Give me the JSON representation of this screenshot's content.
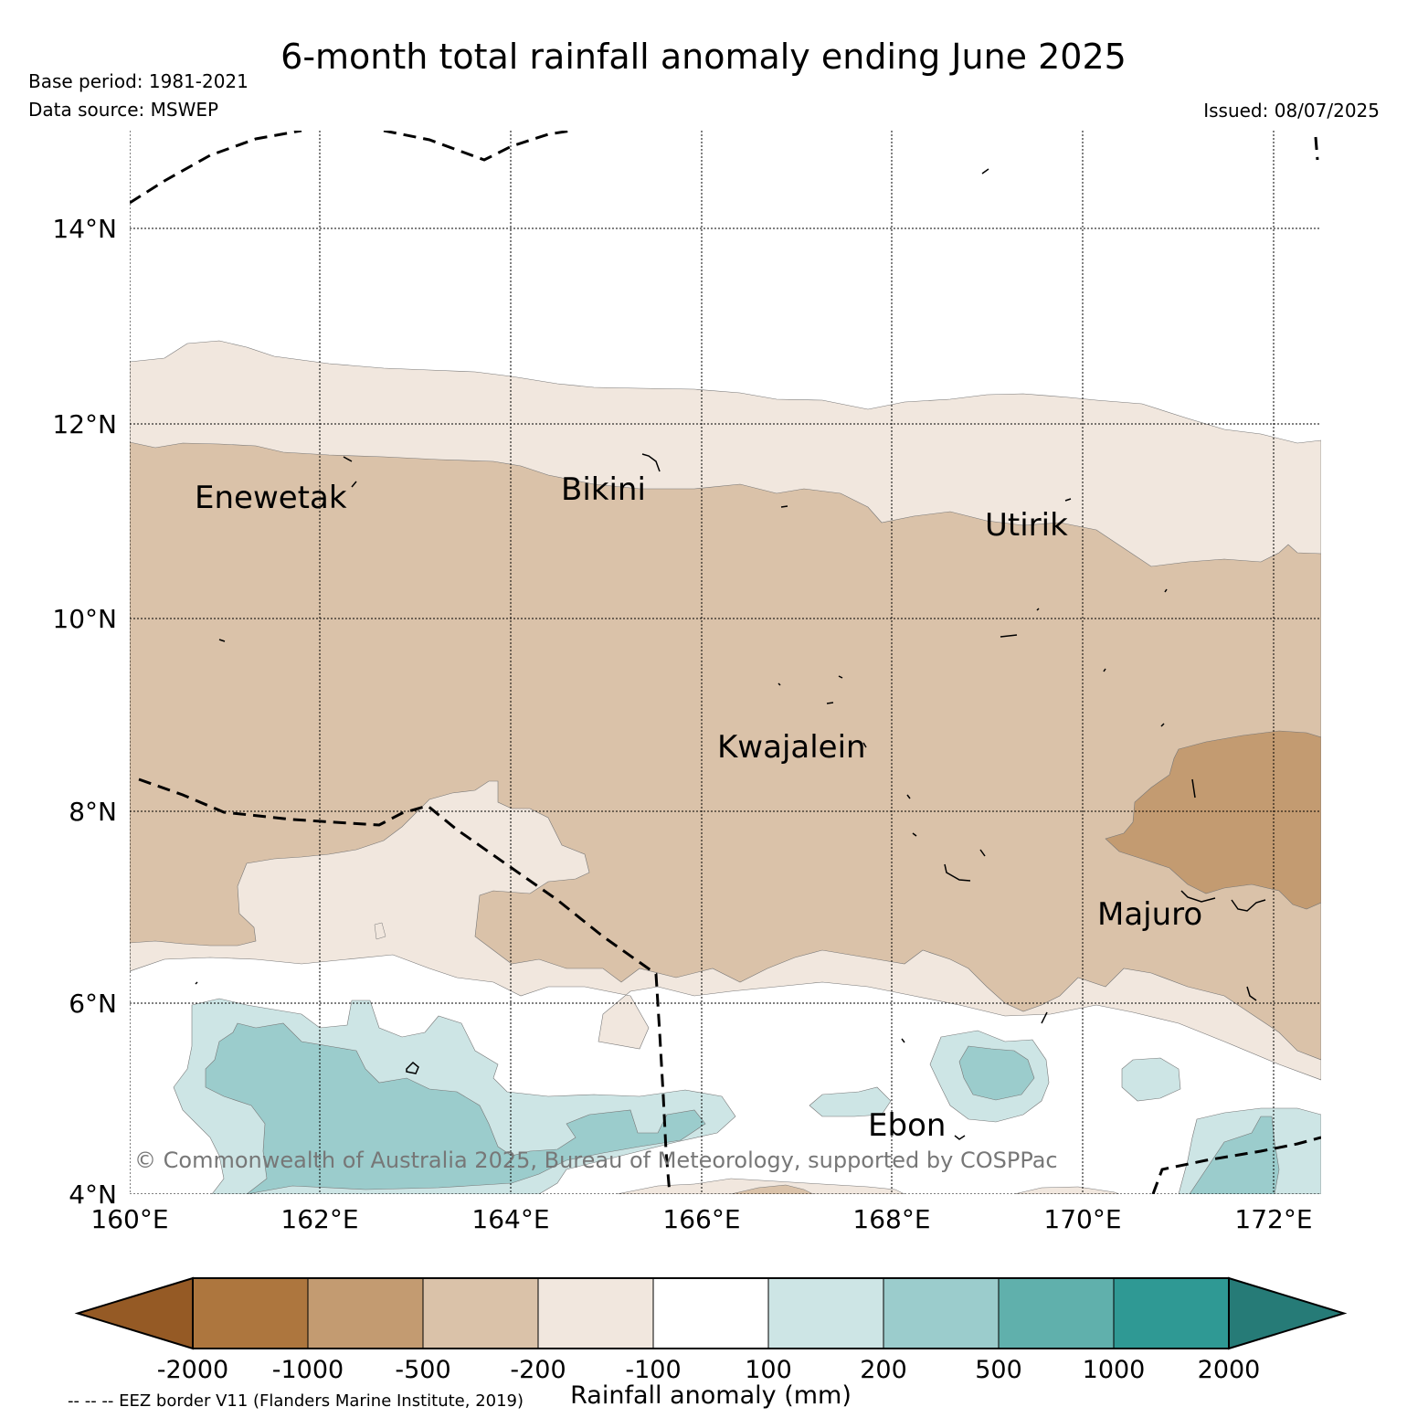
{
  "title": "6-month total rainfall anomaly ending June 2025",
  "base_period": "Base period: 1981-2021",
  "data_source": "Data source: MSWEP",
  "issued": "Issued: 08/07/2025",
  "map": {
    "lat_labels": [
      "14°N",
      "12°N",
      "10°N",
      "8°N",
      "6°N",
      "4°N"
    ],
    "lon_labels": [
      "160°E",
      "162°E",
      "164°E",
      "166°E",
      "168°E",
      "170°E",
      "172°E"
    ],
    "places": [
      "Enewetak",
      "Bikini",
      "Utirik",
      "Kwajalein",
      "Majuro",
      "Ebon"
    ],
    "copyright": "© Commonwealth of Australia 2025, Bureau of Meteorology, supported by COSPPac",
    "extent": {
      "lon_min": 160,
      "lon_max": 172.5,
      "lat_min": 4,
      "lat_max": 15
    }
  },
  "colorbar": {
    "label": "Rainfall anomaly (mm)",
    "ticks": [
      "-2000",
      "-1000",
      "-500",
      "-200",
      "-100",
      "100",
      "200",
      "500",
      "1000",
      "2000"
    ],
    "colors": [
      "#955a25",
      "#ad763e",
      "#c39b71",
      "#dac2a9",
      "#f1e7de",
      "#ffffff",
      "#cde5e5",
      "#9bcccc",
      "#60b0ac",
      "#2f9994",
      "#267b77"
    ]
  },
  "eez_note": "-- -- -- EEZ border V11 (Flanders Marine Institute, 2019)"
}
